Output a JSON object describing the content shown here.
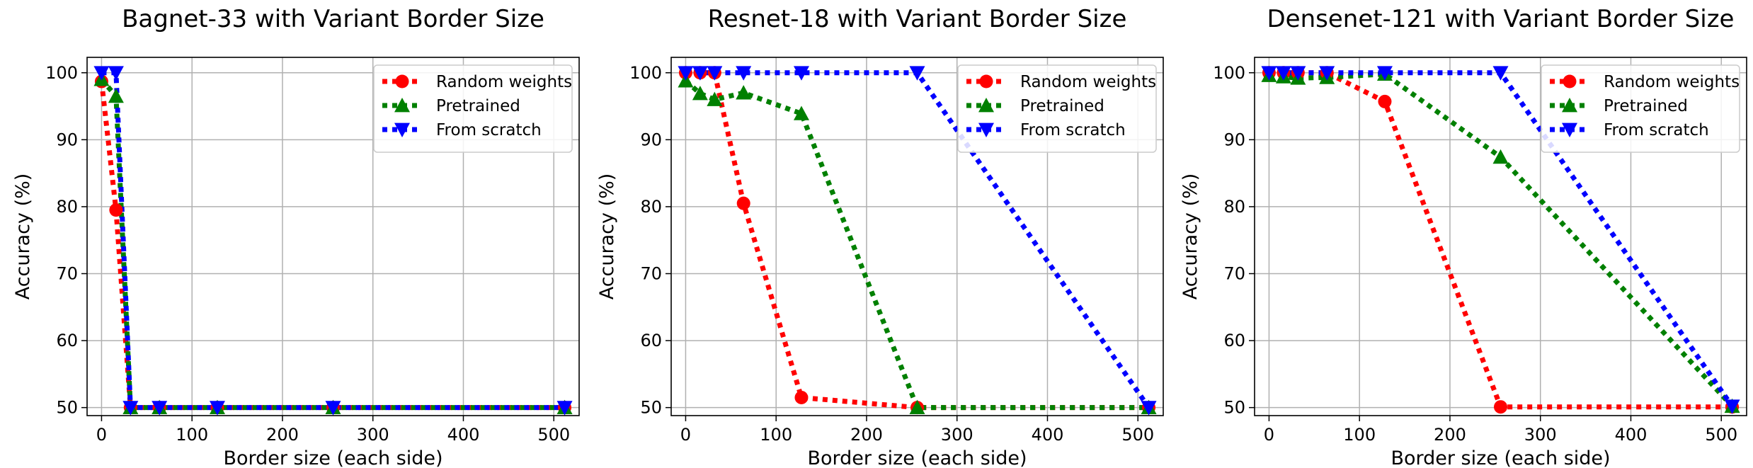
{
  "chart_data": [
    {
      "type": "line",
      "title": "Bagnet-33 with Variant Border Size",
      "xlabel": "Border size (each side)",
      "ylabel": "Accuracy (%)",
      "xlim": [
        -16,
        528
      ],
      "ylim": [
        48.8,
        102.3
      ],
      "xticks": [
        0,
        100,
        200,
        300,
        400,
        500
      ],
      "yticks": [
        50,
        60,
        70,
        80,
        90,
        100
      ],
      "grid": true,
      "legend_position": "top-right",
      "series": [
        {
          "name": "Random weights",
          "color": "#ff0000",
          "marker": "circle",
          "x": [
            0,
            16,
            32,
            64,
            128,
            256,
            512
          ],
          "y": [
            98.7,
            79.5,
            50.0,
            50.0,
            50.0,
            50.0,
            50.0
          ]
        },
        {
          "name": "Pretrained",
          "color": "#008000",
          "marker": "triangle-up",
          "x": [
            0,
            16,
            32,
            64,
            128,
            256,
            512
          ],
          "y": [
            99.0,
            96.5,
            50.0,
            50.0,
            50.0,
            50.0,
            50.0
          ]
        },
        {
          "name": "From scratch",
          "color": "#0000ff",
          "marker": "triangle-down",
          "x": [
            0,
            16,
            32,
            64,
            128,
            256,
            512
          ],
          "y": [
            100.0,
            100.0,
            50.0,
            50.0,
            50.0,
            50.0,
            50.0
          ]
        }
      ]
    },
    {
      "type": "line",
      "title": "Resnet-18 with Variant Border Size",
      "xlabel": "Border size (each side)",
      "ylabel": "Accuracy (%)",
      "xlim": [
        -16,
        528
      ],
      "ylim": [
        48.8,
        102.3
      ],
      "xticks": [
        0,
        100,
        200,
        300,
        400,
        500
      ],
      "yticks": [
        50,
        60,
        70,
        80,
        90,
        100
      ],
      "grid": true,
      "legend_position": "top-right",
      "series": [
        {
          "name": "Random weights",
          "color": "#ff0000",
          "marker": "circle",
          "x": [
            0,
            16,
            32,
            64,
            128,
            256,
            512
          ],
          "y": [
            100.0,
            100.0,
            100.0,
            80.5,
            51.5,
            50.0,
            50.0
          ]
        },
        {
          "name": "Pretrained",
          "color": "#008000",
          "marker": "triangle-up",
          "x": [
            0,
            16,
            32,
            64,
            128,
            256,
            512
          ],
          "y": [
            98.8,
            96.9,
            96.0,
            97.0,
            93.9,
            50.0,
            50.0
          ]
        },
        {
          "name": "From scratch",
          "color": "#0000ff",
          "marker": "triangle-down",
          "x": [
            0,
            16,
            32,
            64,
            128,
            256,
            512
          ],
          "y": [
            100.0,
            100.0,
            100.0,
            100.0,
            100.0,
            100.0,
            50.0
          ]
        }
      ]
    },
    {
      "type": "line",
      "title": "Densenet-121 with Variant Border Size",
      "xlabel": "Border size (each side)",
      "ylabel": "Accuracy (%)",
      "xlim": [
        -16,
        528
      ],
      "ylim": [
        48.8,
        102.3
      ],
      "xticks": [
        0,
        100,
        200,
        300,
        400,
        500
      ],
      "yticks": [
        50,
        60,
        70,
        80,
        90,
        100
      ],
      "grid": true,
      "legend_position": "top-right",
      "series": [
        {
          "name": "Random weights",
          "color": "#ff0000",
          "marker": "circle",
          "x": [
            0,
            16,
            32,
            64,
            128,
            256,
            512
          ],
          "y": [
            100.0,
            100.0,
            100.0,
            100.0,
            95.7,
            50.1,
            50.1
          ]
        },
        {
          "name": "Pretrained",
          "color": "#008000",
          "marker": "triangle-up",
          "x": [
            0,
            16,
            32,
            64,
            128,
            256,
            512
          ],
          "y": [
            99.6,
            99.4,
            99.2,
            99.3,
            99.8,
            87.4,
            50.2
          ]
        },
        {
          "name": "From scratch",
          "color": "#0000ff",
          "marker": "triangle-down",
          "x": [
            0,
            16,
            32,
            64,
            128,
            256,
            512
          ],
          "y": [
            100.0,
            100.0,
            100.0,
            100.0,
            100.0,
            100.0,
            50.2
          ]
        }
      ]
    }
  ]
}
